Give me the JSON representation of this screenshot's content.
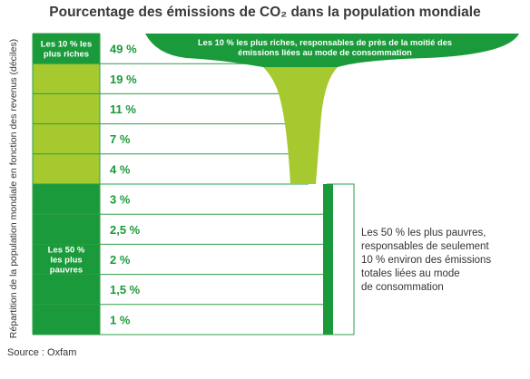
{
  "title": "Pourcentage des émissions de CO₂ dans la population mondiale",
  "ylabel": "Répartition de la population mondiale en fonction des revenus (déciles)",
  "source": "Source : Oxfam",
  "colors": {
    "dark_green": "#1a9a3a",
    "light_green": "#a5c92e",
    "border": "#2e9f45"
  },
  "group_labels": {
    "top": [
      "Les 10 % les",
      "plus riches"
    ],
    "bottom": [
      "Les 50 %",
      "les plus",
      "pauvres"
    ]
  },
  "banner_text": [
    "Les 10 % les plus riches, responsables de près de la moitié des",
    "émissions liées au mode de consommation"
  ],
  "note_lines": [
    "Les 50 % les plus pauvres,",
    "responsables de seulement",
    "10 % environ des émissions",
    "totales liées au mode",
    "de consommation"
  ],
  "chart_data": {
    "type": "table",
    "title": "Pourcentage des émissions de CO₂ dans la population mondiale",
    "ylabel": "Répartition de la population mondiale en fonction des revenus (déciles)",
    "unit": "%",
    "values": [
      49,
      19,
      11,
      7,
      4,
      3,
      2.5,
      2,
      1.5,
      1
    ],
    "labels": [
      "49 %",
      "19 %",
      "11 %",
      "7 %",
      "4 %",
      "3 %",
      "2,5 %",
      "2 %",
      "1,5 %",
      "1 %"
    ]
  }
}
